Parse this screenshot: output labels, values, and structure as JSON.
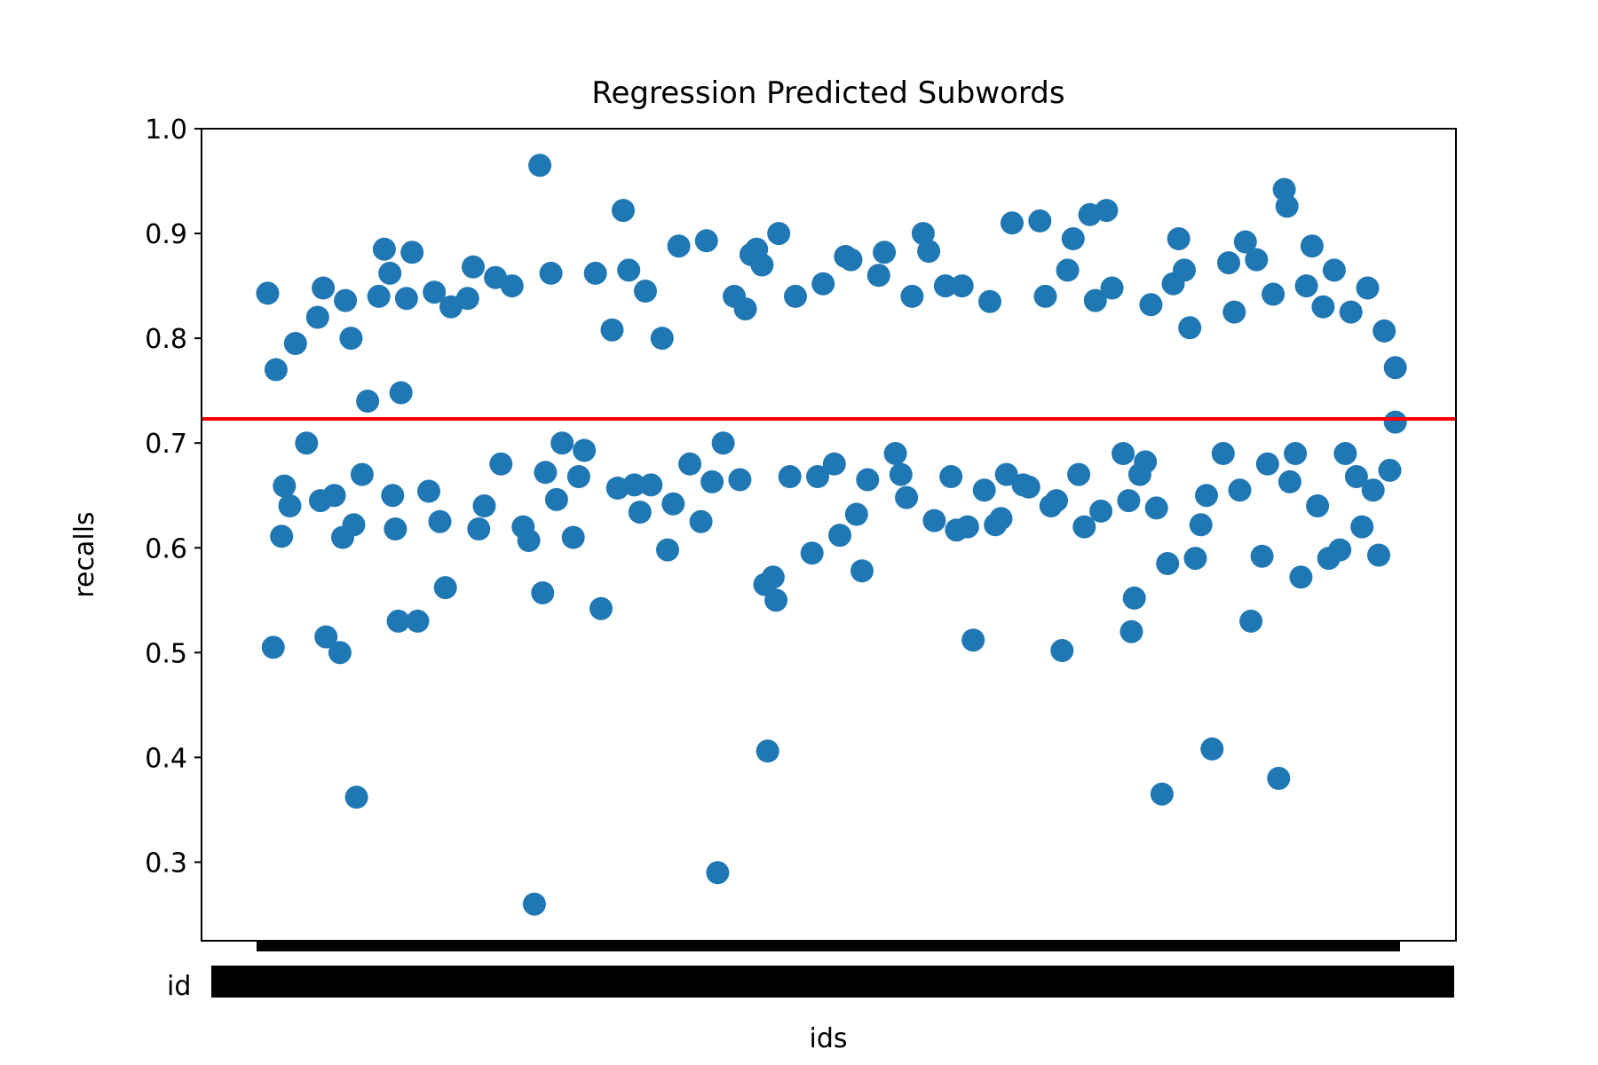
{
  "chart_data": {
    "type": "scatter",
    "title": "Regression Predicted Subwords",
    "xlabel": "ids",
    "ylabel": "recalls",
    "ylim": [
      0.225,
      1.0
    ],
    "yticks": [
      "0.3",
      "0.4",
      "0.5",
      "0.6",
      "0.7",
      "0.8",
      "0.9",
      "1.0"
    ],
    "xtick_visible_text": "id",
    "xtick_count_note": "overlapping tick labels",
    "grid": false,
    "series": [
      {
        "color": "#1f77b4",
        "points": [
          [
            0.02,
            0.843
          ],
          [
            0.03,
            0.505
          ],
          [
            0.035,
            0.77
          ],
          [
            0.045,
            0.611
          ],
          [
            0.05,
            0.659
          ],
          [
            0.06,
            0.64
          ],
          [
            0.07,
            0.795
          ],
          [
            0.09,
            0.7
          ],
          [
            0.11,
            0.82
          ],
          [
            0.115,
            0.645
          ],
          [
            0.12,
            0.848
          ],
          [
            0.125,
            0.515
          ],
          [
            0.14,
            0.65
          ],
          [
            0.15,
            0.5
          ],
          [
            0.155,
            0.61
          ],
          [
            0.16,
            0.836
          ],
          [
            0.17,
            0.8
          ],
          [
            0.175,
            0.622
          ],
          [
            0.18,
            0.362
          ],
          [
            0.19,
            0.67
          ],
          [
            0.2,
            0.74
          ],
          [
            0.22,
            0.84
          ],
          [
            0.23,
            0.885
          ],
          [
            0.24,
            0.862
          ],
          [
            0.245,
            0.65
          ],
          [
            0.25,
            0.618
          ],
          [
            0.255,
            0.53
          ],
          [
            0.26,
            0.748
          ],
          [
            0.27,
            0.838
          ],
          [
            0.28,
            0.882
          ],
          [
            0.29,
            0.53
          ],
          [
            0.31,
            0.654
          ],
          [
            0.32,
            0.844
          ],
          [
            0.33,
            0.625
          ],
          [
            0.34,
            0.562
          ],
          [
            0.35,
            0.83
          ],
          [
            0.38,
            0.838
          ],
          [
            0.39,
            0.868
          ],
          [
            0.4,
            0.618
          ],
          [
            0.41,
            0.64
          ],
          [
            0.43,
            0.858
          ],
          [
            0.44,
            0.68
          ],
          [
            0.46,
            0.85
          ],
          [
            0.48,
            0.62
          ],
          [
            0.49,
            0.607
          ],
          [
            0.5,
            0.26
          ],
          [
            0.51,
            0.965
          ],
          [
            0.515,
            0.557
          ],
          [
            0.52,
            0.672
          ],
          [
            0.53,
            0.862
          ],
          [
            0.54,
            0.646
          ],
          [
            0.55,
            0.7
          ],
          [
            0.57,
            0.61
          ],
          [
            0.58,
            0.668
          ],
          [
            0.59,
            0.693
          ],
          [
            0.61,
            0.862
          ],
          [
            0.62,
            0.542
          ],
          [
            0.64,
            0.808
          ],
          [
            0.65,
            0.657
          ],
          [
            0.66,
            0.922
          ],
          [
            0.67,
            0.865
          ],
          [
            0.68,
            0.66
          ],
          [
            0.69,
            0.634
          ],
          [
            0.7,
            0.845
          ],
          [
            0.71,
            0.66
          ],
          [
            0.73,
            0.8
          ],
          [
            0.74,
            0.598
          ],
          [
            0.75,
            0.642
          ],
          [
            0.76,
            0.888
          ],
          [
            0.78,
            0.68
          ],
          [
            0.8,
            0.625
          ],
          [
            0.81,
            0.893
          ],
          [
            0.82,
            0.663
          ],
          [
            0.83,
            0.29
          ],
          [
            0.84,
            0.7
          ],
          [
            0.86,
            0.84
          ],
          [
            0.87,
            0.665
          ],
          [
            0.88,
            0.828
          ],
          [
            0.89,
            0.88
          ],
          [
            0.9,
            0.885
          ],
          [
            0.91,
            0.87
          ],
          [
            0.915,
            0.565
          ],
          [
            0.92,
            0.406
          ],
          [
            0.93,
            0.572
          ],
          [
            0.935,
            0.55
          ],
          [
            0.94,
            0.9
          ],
          [
            0.96,
            0.668
          ],
          [
            0.97,
            0.84
          ],
          [
            1.0,
            0.595
          ],
          [
            1.01,
            0.668
          ],
          [
            1.02,
            0.852
          ],
          [
            1.04,
            0.68
          ],
          [
            1.05,
            0.612
          ],
          [
            1.06,
            0.878
          ],
          [
            1.07,
            0.875
          ],
          [
            1.08,
            0.632
          ],
          [
            1.09,
            0.578
          ],
          [
            1.1,
            0.665
          ],
          [
            1.12,
            0.86
          ],
          [
            1.13,
            0.882
          ],
          [
            1.15,
            0.69
          ],
          [
            1.16,
            0.67
          ],
          [
            1.17,
            0.648
          ],
          [
            1.18,
            0.84
          ],
          [
            1.2,
            0.9
          ],
          [
            1.21,
            0.883
          ],
          [
            1.22,
            0.626
          ],
          [
            1.24,
            0.85
          ],
          [
            1.25,
            0.668
          ],
          [
            1.26,
            0.617
          ],
          [
            1.27,
            0.85
          ],
          [
            1.28,
            0.62
          ],
          [
            1.29,
            0.512
          ],
          [
            1.31,
            0.655
          ],
          [
            1.32,
            0.835
          ],
          [
            1.33,
            0.622
          ],
          [
            1.34,
            0.628
          ],
          [
            1.35,
            0.67
          ],
          [
            1.36,
            0.91
          ],
          [
            1.38,
            0.66
          ],
          [
            1.39,
            0.658
          ],
          [
            1.41,
            0.912
          ],
          [
            1.42,
            0.84
          ],
          [
            1.43,
            0.64
          ],
          [
            1.44,
            0.645
          ],
          [
            1.45,
            0.502
          ],
          [
            1.46,
            0.865
          ],
          [
            1.47,
            0.895
          ],
          [
            1.48,
            0.67
          ],
          [
            1.49,
            0.62
          ],
          [
            1.5,
            0.918
          ],
          [
            1.51,
            0.836
          ],
          [
            1.52,
            0.635
          ],
          [
            1.53,
            0.922
          ],
          [
            1.54,
            0.848
          ],
          [
            1.56,
            0.69
          ],
          [
            1.57,
            0.645
          ],
          [
            1.575,
            0.52
          ],
          [
            1.58,
            0.552
          ],
          [
            1.59,
            0.67
          ],
          [
            1.6,
            0.682
          ],
          [
            1.61,
            0.832
          ],
          [
            1.62,
            0.638
          ],
          [
            1.63,
            0.365
          ],
          [
            1.64,
            0.585
          ],
          [
            1.65,
            0.852
          ],
          [
            1.66,
            0.895
          ],
          [
            1.67,
            0.865
          ],
          [
            1.68,
            0.81
          ],
          [
            1.69,
            0.59
          ],
          [
            1.7,
            0.622
          ],
          [
            1.71,
            0.65
          ],
          [
            1.72,
            0.408
          ],
          [
            1.74,
            0.69
          ],
          [
            1.75,
            0.872
          ],
          [
            1.76,
            0.825
          ],
          [
            1.77,
            0.655
          ],
          [
            1.78,
            0.892
          ],
          [
            1.79,
            0.53
          ],
          [
            1.8,
            0.875
          ],
          [
            1.81,
            0.592
          ],
          [
            1.82,
            0.68
          ],
          [
            1.83,
            0.842
          ],
          [
            1.84,
            0.38
          ],
          [
            1.85,
            0.942
          ],
          [
            1.855,
            0.926
          ],
          [
            1.86,
            0.663
          ],
          [
            1.87,
            0.69
          ],
          [
            1.88,
            0.572
          ],
          [
            1.89,
            0.85
          ],
          [
            1.9,
            0.888
          ],
          [
            1.91,
            0.64
          ],
          [
            1.92,
            0.83
          ],
          [
            1.93,
            0.59
          ],
          [
            1.94,
            0.865
          ],
          [
            1.95,
            0.598
          ],
          [
            1.96,
            0.69
          ],
          [
            1.97,
            0.825
          ],
          [
            1.98,
            0.668
          ],
          [
            1.99,
            0.62
          ],
          [
            2.0,
            0.848
          ],
          [
            2.01,
            0.655
          ],
          [
            2.02,
            0.593
          ],
          [
            2.03,
            0.807
          ],
          [
            2.04,
            0.674
          ],
          [
            2.05,
            0.772
          ],
          [
            2.05,
            0.72
          ]
        ]
      }
    ],
    "mean_line": {
      "value": 0.723,
      "color": "#ff0000"
    }
  },
  "colors": {
    "points": "#1f77b4",
    "mean": "#ff0000",
    "axes": "#000000"
  }
}
